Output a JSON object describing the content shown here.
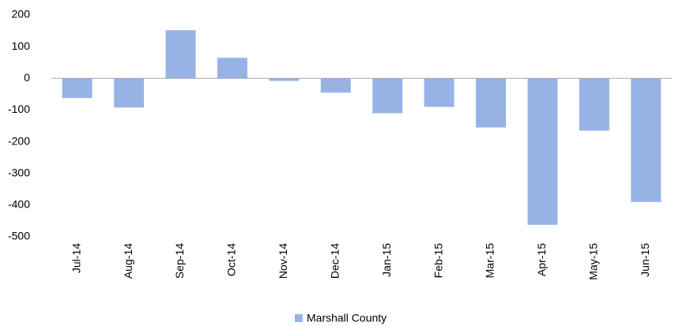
{
  "chart_data": {
    "type": "bar",
    "categories": [
      "Jul-14",
      "Aug-14",
      "Sep-14",
      "Oct-14",
      "Nov-14",
      "Dec-14",
      "Jan-15",
      "Feb-15",
      "Mar-15",
      "Apr-15",
      "May-15",
      "Jun-15"
    ],
    "series": [
      {
        "name": "Marshall County",
        "color": "#97b3e6",
        "values": [
          -62,
          -92,
          152,
          65,
          -8,
          -45,
          -110,
          -90,
          -155,
          -462,
          -165,
          -390
        ]
      }
    ],
    "ylim": [
      -500,
      200
    ],
    "yticks": [
      -500,
      -400,
      -300,
      -200,
      -100,
      0,
      100,
      200
    ],
    "grid": false,
    "legend": "bottom"
  }
}
